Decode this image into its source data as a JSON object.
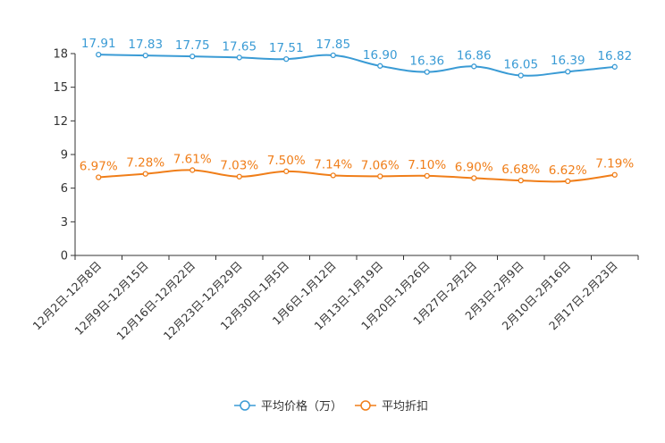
{
  "chart_data": {
    "type": "line",
    "title": "",
    "xlabel": "",
    "ylabel": "",
    "ylim": [
      0,
      18
    ],
    "yticks": [
      0,
      3,
      6,
      9,
      12,
      15,
      18
    ],
    "grid": false,
    "legend_position": "bottom-center",
    "categories": [
      "12月2日-12月8日",
      "12月9日-12月15日",
      "12月16日-12月22日",
      "12月23日-12月29日",
      "12月30日-1月5日",
      "1月6日-1月12日",
      "1月13日-1月19日",
      "1月20日-1月26日",
      "1月27日-2月2日",
      "2月3日-2月9日",
      "2月10日-2月16日",
      "2月17日-2月23日"
    ],
    "series": [
      {
        "name": "平均价格（万）",
        "color": "#3a9bd5",
        "values": [
          17.91,
          17.83,
          17.75,
          17.65,
          17.51,
          17.85,
          16.9,
          16.36,
          16.86,
          16.05,
          16.39,
          16.82
        ],
        "labels": [
          "17.91",
          "17.83",
          "17.75",
          "17.65",
          "17.51",
          "17.85",
          "16.90",
          "16.36",
          "16.86",
          "16.05",
          "16.39",
          "16.82"
        ]
      },
      {
        "name": "平均折扣",
        "color": "#f07e19",
        "values": [
          6.97,
          7.28,
          7.61,
          7.03,
          7.5,
          7.14,
          7.06,
          7.1,
          6.9,
          6.68,
          6.62,
          7.19
        ],
        "labels": [
          "6.97%",
          "7.28%",
          "7.61%",
          "7.03%",
          "7.50%",
          "7.14%",
          "7.06%",
          "7.10%",
          "6.90%",
          "6.68%",
          "6.62%",
          "7.19%"
        ]
      }
    ]
  }
}
